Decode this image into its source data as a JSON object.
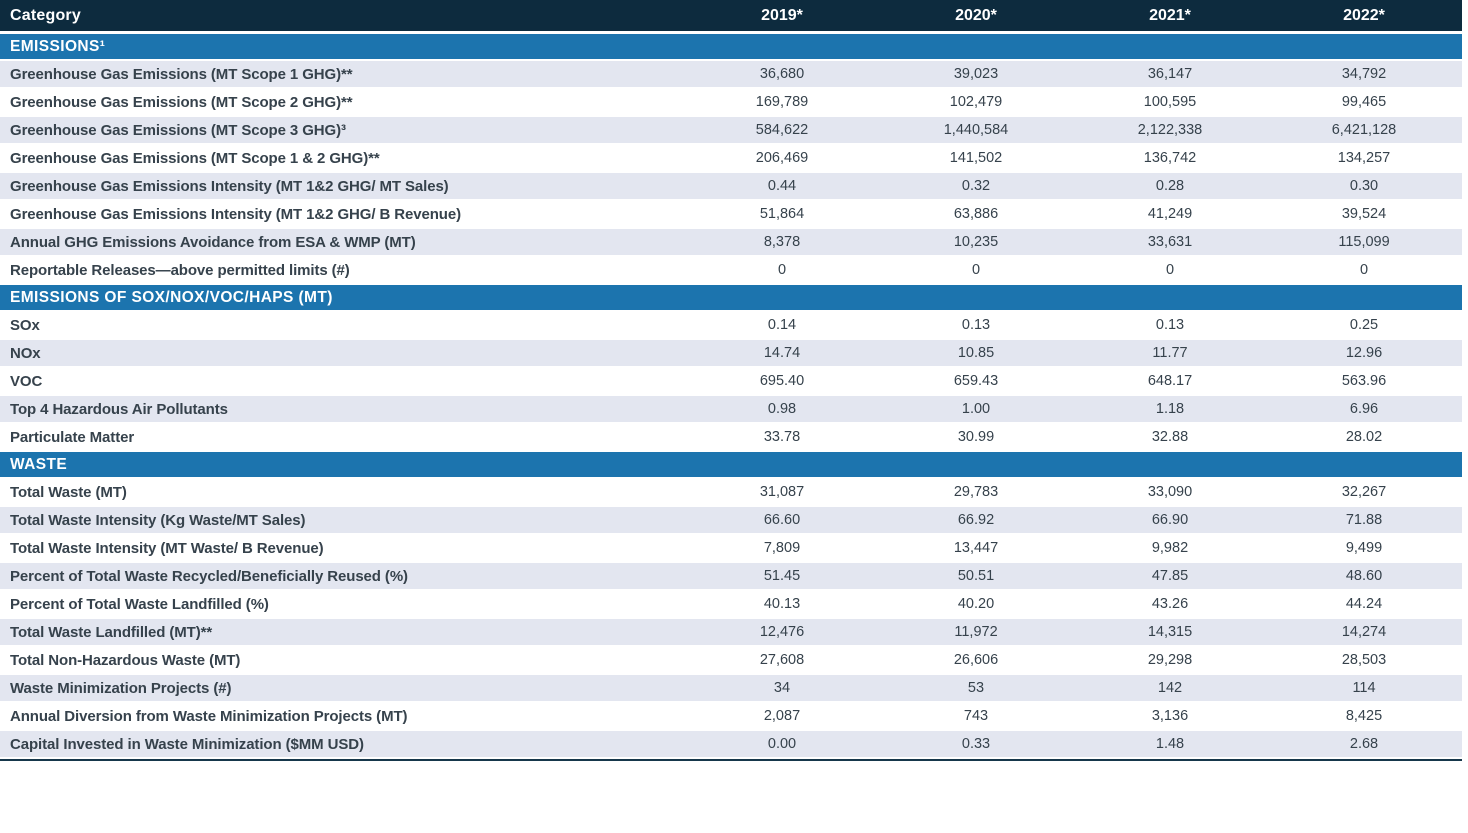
{
  "chart_data": {
    "type": "table",
    "columns": [
      "Category",
      "2019*",
      "2020*",
      "2021*",
      "2022*"
    ],
    "sections": [
      {
        "title": "EMISSIONS¹",
        "rows": [
          {
            "label": "Greenhouse Gas Emissions (MT Scope 1 GHG)**",
            "values": [
              "36,680",
              "39,023",
              "36,147",
              "34,792"
            ]
          },
          {
            "label": "Greenhouse Gas Emissions (MT Scope 2 GHG)**",
            "values": [
              "169,789",
              "102,479",
              "100,595",
              "99,465"
            ]
          },
          {
            "label": "Greenhouse Gas Emissions (MT Scope 3 GHG)³",
            "values": [
              "584,622",
              "1,440,584",
              "2,122,338",
              "6,421,128"
            ]
          },
          {
            "label": "Greenhouse Gas Emissions (MT Scope 1 & 2 GHG)**",
            "values": [
              "206,469",
              "141,502",
              "136,742",
              "134,257"
            ]
          },
          {
            "label": "Greenhouse Gas Emissions Intensity (MT 1&2 GHG/ MT Sales)",
            "values": [
              "0.44",
              "0.32",
              "0.28",
              "0.30"
            ]
          },
          {
            "label": "Greenhouse Gas Emissions Intensity (MT 1&2 GHG/ B Revenue)",
            "values": [
              "51,864",
              "63,886",
              "41,249",
              "39,524"
            ]
          },
          {
            "label": "Annual GHG Emissions Avoidance from ESA & WMP (MT)",
            "values": [
              "8,378",
              "10,235",
              "33,631",
              "115,099"
            ]
          },
          {
            "label": "Reportable Releases—above permitted limits (#)",
            "values": [
              "0",
              "0",
              "0",
              "0"
            ]
          }
        ]
      },
      {
        "title": "EMISSIONS OF SOX/NOX/VOC/HAPS (MT)",
        "rows": [
          {
            "label": "SOx",
            "values": [
              "0.14",
              "0.13",
              "0.13",
              "0.25"
            ]
          },
          {
            "label": "NOx",
            "values": [
              "14.74",
              "10.85",
              "11.77",
              "12.96"
            ]
          },
          {
            "label": "VOC",
            "values": [
              "695.40",
              "659.43",
              "648.17",
              "563.96"
            ]
          },
          {
            "label": "Top 4 Hazardous Air Pollutants",
            "values": [
              "0.98",
              "1.00",
              "1.18",
              "6.96"
            ]
          },
          {
            "label": "Particulate Matter",
            "values": [
              "33.78",
              "30.99",
              "32.88",
              "28.02"
            ]
          }
        ]
      },
      {
        "title": "WASTE",
        "rows": [
          {
            "label": "Total Waste (MT)",
            "values": [
              "31,087",
              "29,783",
              "33,090",
              "32,267"
            ]
          },
          {
            "label": "Total Waste Intensity (Kg Waste/MT Sales)",
            "values": [
              "66.60",
              "66.92",
              "66.90",
              "71.88"
            ]
          },
          {
            "label": "Total Waste Intensity (MT Waste/ B Revenue)",
            "values": [
              "7,809",
              "13,447",
              "9,982",
              "9,499"
            ]
          },
          {
            "label": "Percent of Total Waste Recycled/Beneficially Reused (%)",
            "values": [
              "51.45",
              "50.51",
              "47.85",
              "48.60"
            ]
          },
          {
            "label": "Percent of Total Waste Landfilled (%)",
            "values": [
              "40.13",
              "40.20",
              "43.26",
              "44.24"
            ]
          },
          {
            "label": "Total Waste Landfilled (MT)**",
            "values": [
              "12,476",
              "11,972",
              "14,315",
              "14,274"
            ]
          },
          {
            "label": "Total Non-Hazardous Waste (MT)",
            "values": [
              "27,608",
              "26,606",
              "29,298",
              "28,503"
            ]
          },
          {
            "label": "Waste Minimization Projects (#)",
            "values": [
              "34",
              "53",
              "142",
              "114"
            ]
          },
          {
            "label": "Annual Diversion from Waste Minimization Projects (MT)",
            "values": [
              "2,087",
              "743",
              "3,136",
              "8,425"
            ]
          },
          {
            "label": "Capital Invested in Waste Minimization ($MM USD)",
            "values": [
              "0.00",
              "0.33",
              "1.48",
              "2.68"
            ]
          }
        ]
      }
    ]
  },
  "colors": {
    "header_bg": "#0d2b3e",
    "section_bg": "#1c74ae",
    "stripe_bg": "#e3e6f0",
    "text": "#36424c",
    "header_text": "#ffffff",
    "bottom_rule": "#16374b"
  }
}
